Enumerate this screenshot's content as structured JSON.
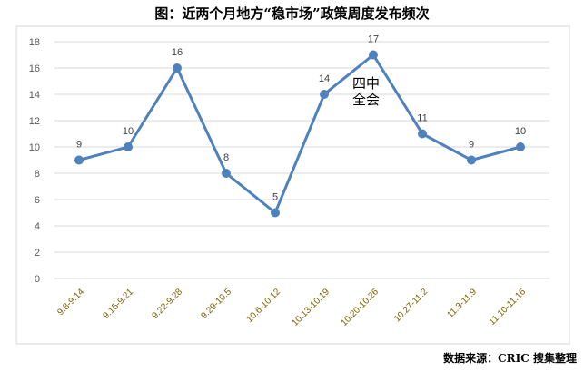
{
  "chart_data": {
    "type": "line",
    "title": "图：近两个月地方“稳市场”政策周度发布频次",
    "categories": [
      "9.8-9.14",
      "9.15-9.21",
      "9.22-9.28",
      "9.29-10.5",
      "10.6-10.12",
      "10.13-10.19",
      "10.20-10.26",
      "10.27-11.2",
      "11.3-11.9",
      "11.10-11.16"
    ],
    "values": [
      9,
      10,
      16,
      8,
      5,
      14,
      17,
      11,
      9,
      10
    ],
    "ylim": [
      0,
      18
    ],
    "yticks": [
      0,
      2,
      4,
      6,
      8,
      10,
      12,
      14,
      16,
      18
    ],
    "grid": true,
    "annotation": {
      "lines": [
        "四中",
        "全会"
      ],
      "category": "10.20-10.26"
    },
    "colors": {
      "line": "#4f81bd",
      "xlabel": "#7f6000",
      "grid": "#d9d9d9"
    }
  },
  "source": "数据来源：CRIC 搜集整理"
}
